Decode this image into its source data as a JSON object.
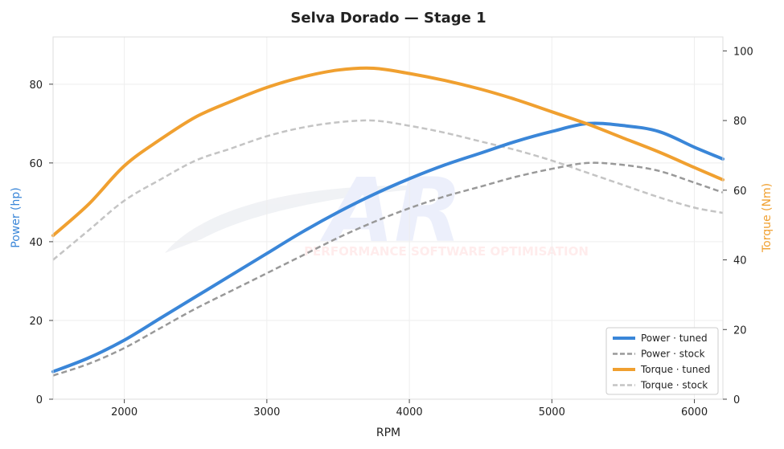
{
  "chart_data": {
    "type": "line",
    "title": "Selva Dorado — Stage 1",
    "xlabel": "RPM",
    "ylabel_left": "Power (hp)",
    "ylabel_right": "Torque (Nm)",
    "xlim": [
      1500,
      6200
    ],
    "ylim_left": [
      0,
      92
    ],
    "ylim_right": [
      0,
      104
    ],
    "x_ticks": [
      2000,
      3000,
      4000,
      5000,
      6000
    ],
    "y_ticks_left": [
      0,
      20,
      40,
      60,
      80
    ],
    "y_ticks_right": [
      0,
      20,
      40,
      60,
      80,
      100
    ],
    "grid": true,
    "legend_position": "bottom-right",
    "watermark": "PERFORMANCE SOFTWARE OPTIMISATION",
    "colors": {
      "power_tuned": "#3a86d8",
      "power_stock": "#999999",
      "torque_tuned": "#f0a030",
      "torque_stock": "#c4c4c4",
      "left_axis_label": "#3a86d8",
      "right_axis_label": "#f0a030"
    },
    "x": [
      1500,
      1750,
      2000,
      2250,
      2500,
      2750,
      3000,
      3250,
      3500,
      3750,
      4000,
      4250,
      4500,
      4750,
      5000,
      5250,
      5500,
      5750,
      6000,
      6200
    ],
    "series": [
      {
        "name": "Power · tuned",
        "axis": "left",
        "style": "solid",
        "color_key": "power_tuned",
        "values": [
          7,
          10.5,
          15,
          20.5,
          26,
          31.5,
          37,
          42.5,
          47.5,
          52,
          56,
          59.5,
          62.5,
          65.5,
          68,
          70,
          69.5,
          68,
          64,
          61
        ]
      },
      {
        "name": "Power · stock",
        "axis": "left",
        "style": "dashed",
        "color_key": "power_stock",
        "values": [
          6,
          9,
          13,
          18,
          23,
          27.5,
          32,
          36.5,
          41,
          45,
          48.5,
          51.5,
          54,
          56.5,
          58.5,
          60,
          59.5,
          58,
          55,
          52.5
        ]
      },
      {
        "name": "Torque · tuned",
        "axis": "right",
        "style": "solid",
        "color_key": "torque_tuned",
        "values": [
          47,
          56,
          67,
          74.5,
          81,
          85.5,
          89.5,
          92.5,
          94.5,
          95,
          93.5,
          91.5,
          89,
          86,
          82.5,
          79,
          75,
          71,
          66.5,
          63
        ]
      },
      {
        "name": "Torque · stock",
        "axis": "right",
        "style": "dashed",
        "color_key": "torque_stock",
        "values": [
          40,
          48.5,
          57,
          63,
          68.5,
          72,
          75.5,
          78,
          79.5,
          80,
          78.5,
          76.5,
          74,
          71.5,
          68.5,
          65,
          61.5,
          58,
          55,
          53.5
        ]
      }
    ]
  }
}
